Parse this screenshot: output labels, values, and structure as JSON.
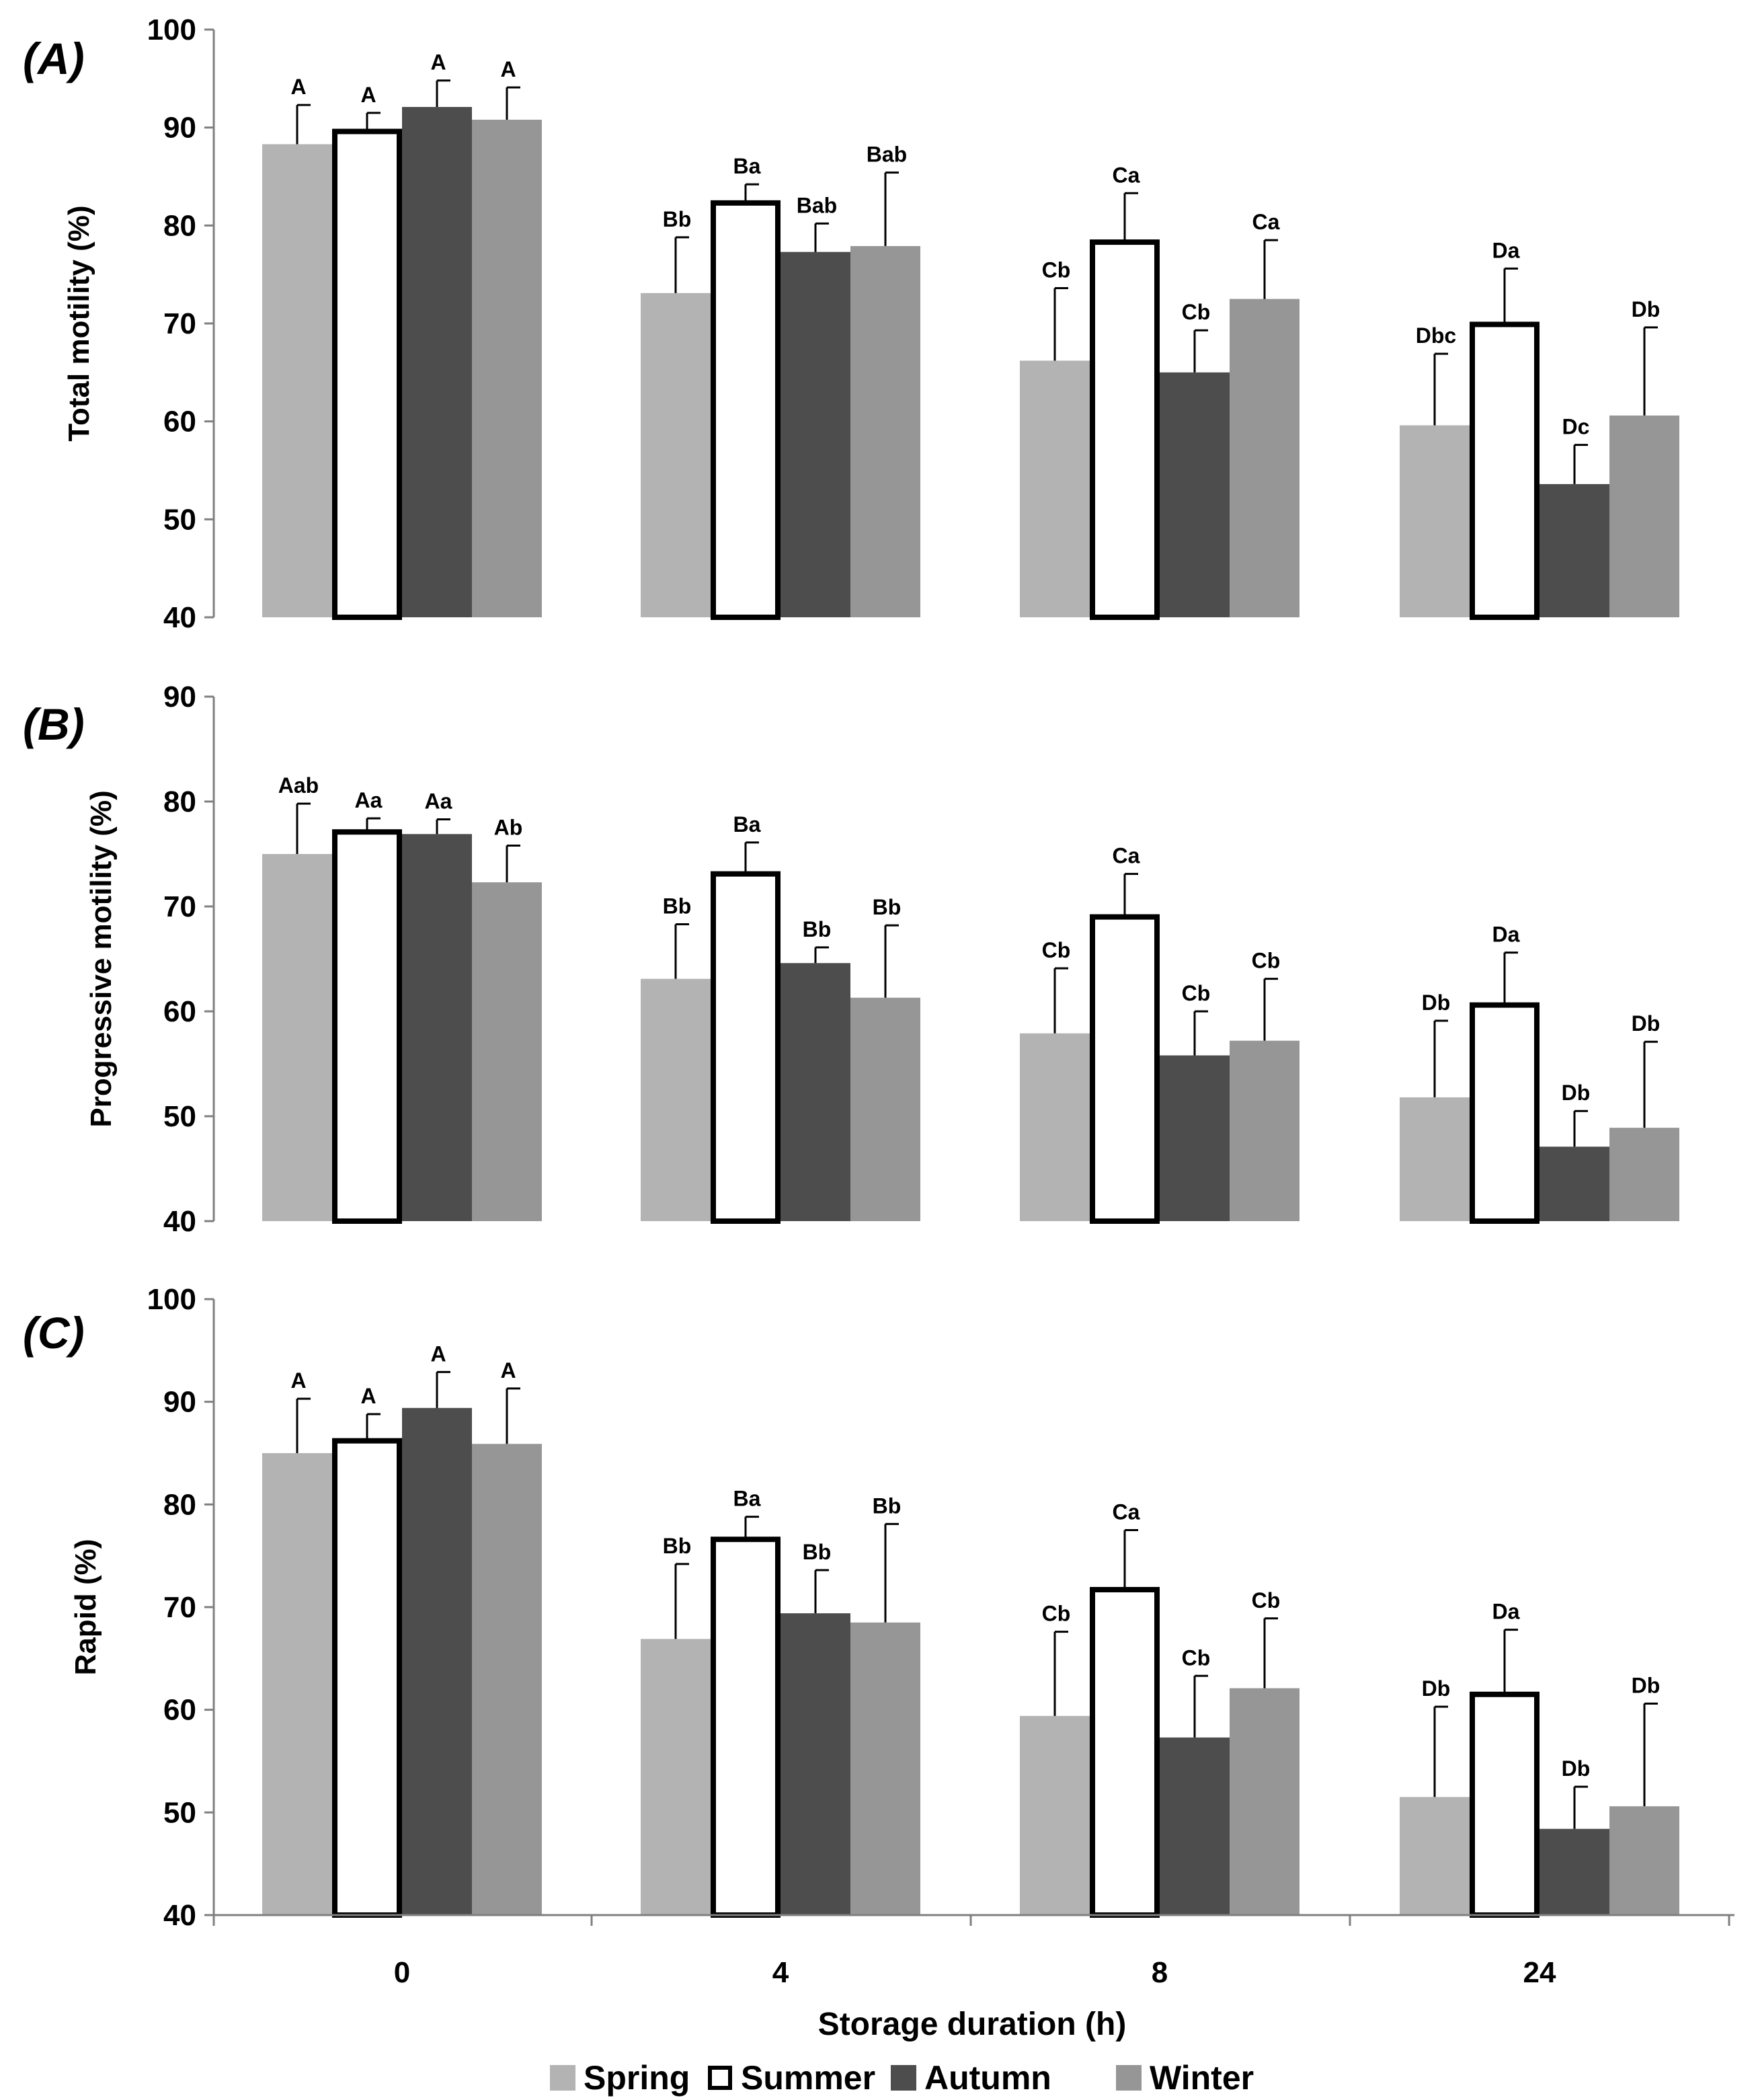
{
  "x_axis_label": "Storage duration (h)",
  "categories": [
    "0",
    "4",
    "8",
    "24"
  ],
  "legend": [
    {
      "name": "Spring",
      "color": "#b3b3b3",
      "style": "filled"
    },
    {
      "name": "Summer",
      "color": "#ffffff",
      "style": "outline"
    },
    {
      "name": "Autumn",
      "color": "#4d4d4d",
      "style": "filled"
    },
    {
      "name": "Winter",
      "color": "#969696",
      "style": "filled"
    }
  ],
  "chart_data": [
    {
      "type": "bar",
      "panel": "(A)",
      "ylabel": "Total motility (%)",
      "ylim": [
        40,
        100
      ],
      "yticks": [
        40,
        50,
        60,
        70,
        80,
        90,
        100
      ],
      "categories": [
        "0",
        "4",
        "8",
        "24"
      ],
      "series": [
        {
          "name": "Spring",
          "values": [
            88.3,
            73.1,
            66.2,
            59.6
          ],
          "errors": [
            4.0,
            5.7,
            7.4,
            7.3
          ],
          "labels": [
            "A",
            "Bb",
            "Cb",
            "Dbc"
          ]
        },
        {
          "name": "Summer",
          "values": [
            89.6,
            82.3,
            78.3,
            69.9
          ],
          "errors": [
            1.9,
            1.9,
            5.0,
            5.7
          ],
          "labels": [
            "A",
            "Ba",
            "Ca",
            "Da"
          ]
        },
        {
          "name": "Autumn",
          "values": [
            92.1,
            77.3,
            65.0,
            53.6
          ],
          "errors": [
            2.7,
            2.9,
            4.3,
            4.0
          ],
          "labels": [
            "A",
            "Bab",
            "Cb",
            "Dc"
          ]
        },
        {
          "name": "Winter",
          "values": [
            90.8,
            77.9,
            72.5,
            60.6
          ],
          "errors": [
            3.3,
            7.5,
            6.0,
            9.0
          ],
          "labels": [
            "A",
            "Bab",
            "Ca",
            "Db"
          ]
        }
      ]
    },
    {
      "type": "bar",
      "panel": "(B)",
      "ylabel": "Progressive motility (%)",
      "ylim": [
        40,
        90
      ],
      "yticks": [
        40,
        50,
        60,
        70,
        80,
        90
      ],
      "categories": [
        "0",
        "4",
        "8",
        "24"
      ],
      "series": [
        {
          "name": "Spring",
          "values": [
            75.0,
            63.1,
            57.9,
            51.8
          ],
          "errors": [
            4.8,
            5.2,
            6.2,
            7.3
          ],
          "labels": [
            "Aab",
            "Bb",
            "Cb",
            "Db"
          ]
        },
        {
          "name": "Summer",
          "values": [
            77.1,
            73.1,
            69.0,
            60.6
          ],
          "errors": [
            1.3,
            3.0,
            4.1,
            5.0
          ],
          "labels": [
            "Aa",
            "Ba",
            "Ca",
            "Da"
          ]
        },
        {
          "name": "Autumn",
          "values": [
            76.9,
            64.6,
            55.8,
            47.1
          ],
          "errors": [
            1.4,
            1.5,
            4.2,
            3.4
          ],
          "labels": [
            "Aa",
            "Bb",
            "Cb",
            "Db"
          ]
        },
        {
          "name": "Winter",
          "values": [
            72.3,
            61.3,
            57.2,
            48.9
          ],
          "errors": [
            3.5,
            6.9,
            5.9,
            8.2
          ],
          "labels": [
            "Ab",
            "Bb",
            "Cb",
            "Db"
          ]
        }
      ]
    },
    {
      "type": "bar",
      "panel": "(C)",
      "ylabel": "Rapid (%)",
      "ylim": [
        40,
        100
      ],
      "yticks": [
        40,
        50,
        60,
        70,
        80,
        90,
        100
      ],
      "categories": [
        "0",
        "4",
        "8",
        "24"
      ],
      "series": [
        {
          "name": "Spring",
          "values": [
            85.0,
            66.9,
            59.4,
            51.5
          ],
          "errors": [
            5.3,
            7.3,
            8.2,
            8.8
          ],
          "labels": [
            "A",
            "Bb",
            "Cb",
            "Db"
          ]
        },
        {
          "name": "Summer",
          "values": [
            86.2,
            76.6,
            71.7,
            61.5
          ],
          "errors": [
            2.6,
            2.2,
            5.8,
            6.3
          ],
          "labels": [
            "A",
            "Ba",
            "Ca",
            "Da"
          ]
        },
        {
          "name": "Autumn",
          "values": [
            89.4,
            69.4,
            57.3,
            48.4
          ],
          "errors": [
            3.5,
            4.2,
            6.0,
            4.1
          ],
          "labels": [
            "A",
            "Bb",
            "Cb",
            "Db"
          ]
        },
        {
          "name": "Winter",
          "values": [
            85.9,
            68.5,
            62.1,
            50.6
          ],
          "errors": [
            5.4,
            9.6,
            6.8,
            10.0
          ],
          "labels": [
            "A",
            "Bb",
            "Cb",
            "Db"
          ]
        }
      ]
    }
  ]
}
